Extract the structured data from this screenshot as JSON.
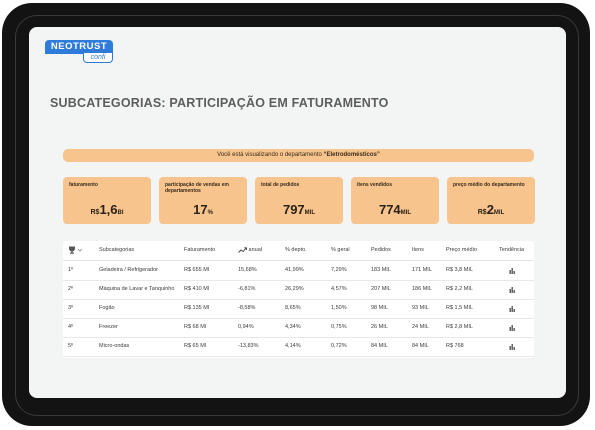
{
  "brand": {
    "name": "NEOTRUST",
    "tagline": "confi"
  },
  "page": {
    "title": "SUBCATEGORIAS: PARTICIPAÇÃO EM FATURAMENTO"
  },
  "banner": {
    "prefix": "Você está visualizando o departamento ",
    "highlight": "“Eletrodomésticos”"
  },
  "kpis": [
    {
      "label": "faturamento",
      "prefix": "R$",
      "value": "1,6",
      "suffix": "BI"
    },
    {
      "label": "participação de vendas em departamentos",
      "prefix": "",
      "value": "17",
      "suffix": "%"
    },
    {
      "label": "total de pedidos",
      "prefix": "",
      "value": "797",
      "suffix": "MIL"
    },
    {
      "label": "itens vendidos",
      "prefix": "",
      "value": "774",
      "suffix": "MIL"
    },
    {
      "label": "preço médio do departamento",
      "prefix": "R$",
      "value": "2",
      "suffix": "MIL"
    }
  ],
  "table": {
    "columns": {
      "subcategorias": "Subcategorias",
      "faturamento": "Faturamento",
      "anual": "anual",
      "depto": "% depto.",
      "geral": "% geral",
      "pedidos": "Pedidos",
      "itens": "Itens",
      "preco": "Preço médio",
      "tendencia": "Tendência"
    },
    "rows": [
      {
        "rank": "1º",
        "name": "Geladeira / Refrigerador",
        "fat": "R$ 655 MI",
        "anual": "15,68%",
        "depto": "41,99%",
        "geral": "7,29%",
        "pedidos": "183 MIL",
        "itens": "171 MIL",
        "preco": "R$ 3,8 MIL"
      },
      {
        "rank": "2º",
        "name": "Máquina de Lavar e Tanquinho",
        "fat": "R$ 410 MI",
        "anual": "-6,81%",
        "depto": "26,29%",
        "geral": "4,57%",
        "pedidos": "207 MIL",
        "itens": "186 MIL",
        "preco": "R$ 2,2 MIL"
      },
      {
        "rank": "3º",
        "name": "Fogão",
        "fat": "R$ 135 MI",
        "anual": "-8,58%",
        "depto": "8,65%",
        "geral": "1,50%",
        "pedidos": "98 MIL",
        "itens": "93 MIL",
        "preco": "R$ 1,5 MIL"
      },
      {
        "rank": "4º",
        "name": "Freezer",
        "fat": "R$ 68 MI",
        "anual": "0,94%",
        "depto": "4,34%",
        "geral": "0,75%",
        "pedidos": "26 MIL",
        "itens": "24 MIL",
        "preco": "R$ 2,8 MIL"
      },
      {
        "rank": "5º",
        "name": "Micro-ondas",
        "fat": "R$ 65 MI",
        "anual": "-13,83%",
        "depto": "4,14%",
        "geral": "0,72%",
        "pedidos": "84 MIL",
        "itens": "84 MIL",
        "preco": "R$ 768"
      }
    ]
  },
  "icons": {
    "rank": "trophy-icon",
    "sort": "sort-icon",
    "anual": "trend-up-icon",
    "trend": "bar-chart-icon"
  },
  "colors": {
    "accent": "#f7c48e",
    "brand": "#2f7bd9",
    "frame": "#131313"
  }
}
